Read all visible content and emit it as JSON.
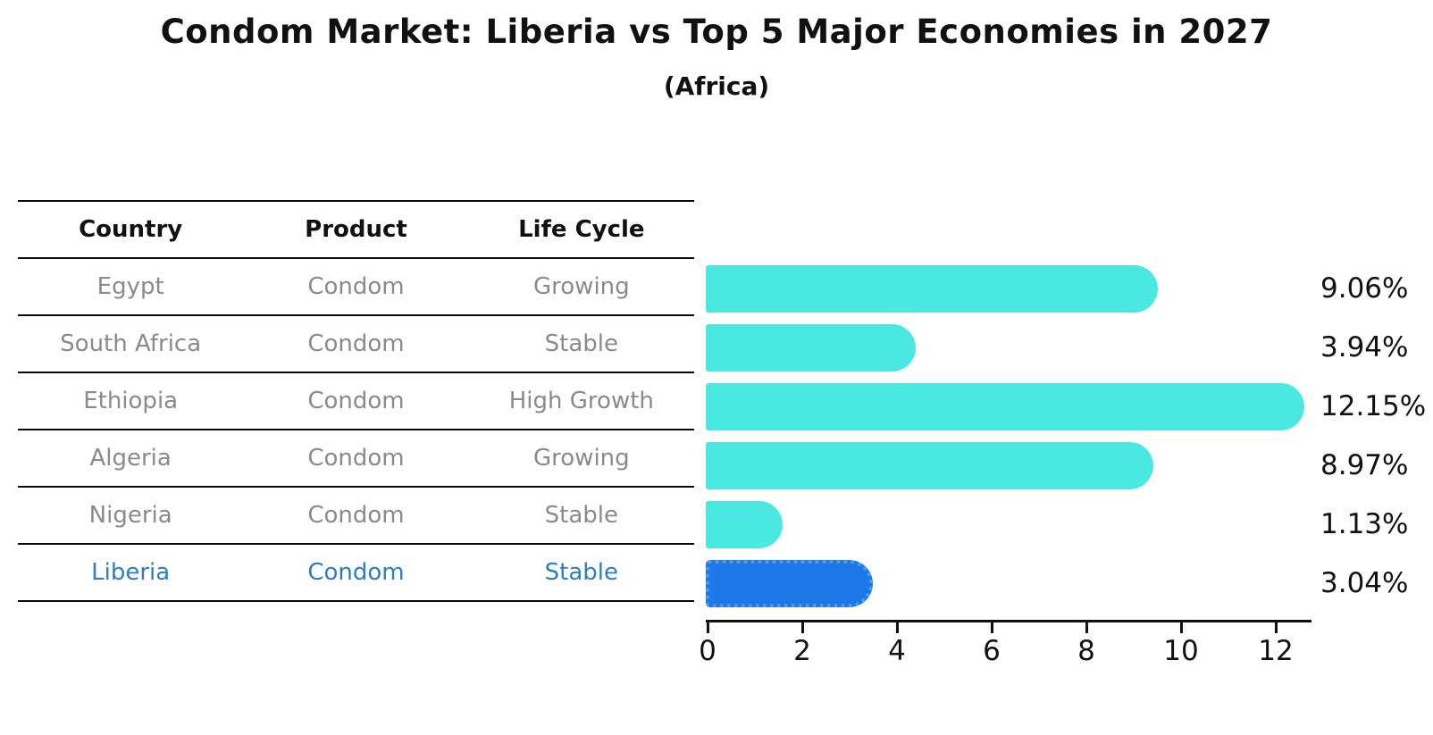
{
  "title": "Condom Market: Liberia vs Top 5 Major Economies in 2027",
  "subtitle": "(Africa)",
  "table": {
    "headers": [
      "Country",
      "Product",
      "Life Cycle"
    ],
    "rows": [
      {
        "country": "Egypt",
        "product": "Condom",
        "life_cycle": "Growing",
        "highlight": false
      },
      {
        "country": "South Africa",
        "product": "Condom",
        "life_cycle": "Stable",
        "highlight": false
      },
      {
        "country": "Ethiopia",
        "product": "Condom",
        "life_cycle": "High Growth",
        "highlight": false
      },
      {
        "country": "Algeria",
        "product": "Condom",
        "life_cycle": "Growing",
        "highlight": false
      },
      {
        "country": "Nigeria",
        "product": "Condom",
        "life_cycle": "Stable",
        "highlight": false
      },
      {
        "country": "Liberia",
        "product": "Condom",
        "life_cycle": "Stable",
        "highlight": true
      }
    ]
  },
  "chart_data": {
    "type": "bar",
    "orientation": "horizontal",
    "title": "Condom Market: Liberia vs Top 5 Major Economies in 2027 (Africa)",
    "categories": [
      "Egypt",
      "South Africa",
      "Ethiopia",
      "Algeria",
      "Nigeria",
      "Liberia"
    ],
    "values": [
      9.06,
      3.94,
      12.15,
      8.97,
      1.13,
      3.04
    ],
    "value_labels": [
      "9.06%",
      "3.94%",
      "12.15%",
      "8.97%",
      "1.13%",
      "3.04%"
    ],
    "x_ticks": [
      0,
      2,
      4,
      6,
      8,
      10,
      12
    ],
    "xlim": [
      0,
      12.8
    ],
    "grid": false,
    "legend_position": "none",
    "bar_color": "#4be8e2",
    "highlight_bar_color": "#1e78e8",
    "highlight_index": 5
  },
  "colors": {
    "bar": "#4be8e2",
    "highlight_bar": "#1e78e8",
    "highlight_text": "#2e7ebf",
    "table_text": "#8a8a8a",
    "axis": "#111111"
  }
}
